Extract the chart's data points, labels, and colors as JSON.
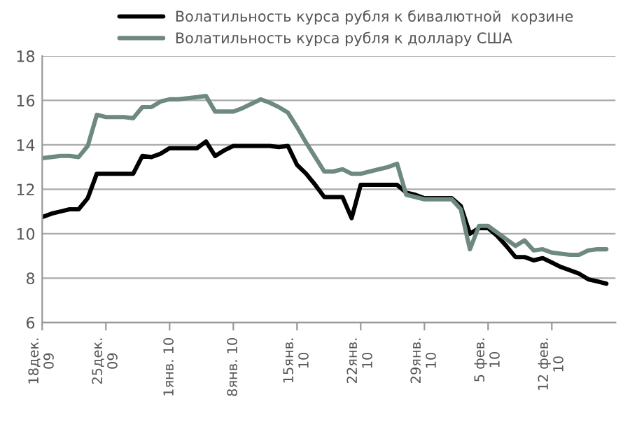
{
  "chart_data": {
    "type": "line",
    "categories": [
      "18дек.\n09",
      null,
      null,
      null,
      null,
      null,
      null,
      "25дек.\n09",
      null,
      null,
      null,
      null,
      null,
      null,
      "1янв. 10",
      null,
      null,
      null,
      null,
      null,
      null,
      "8янв. 10",
      null,
      null,
      null,
      null,
      null,
      null,
      "15янв.\n10",
      null,
      null,
      null,
      null,
      null,
      null,
      "22янв.\n10",
      null,
      null,
      null,
      null,
      null,
      null,
      "29янв.\n10",
      null,
      null,
      null,
      null,
      null,
      null,
      "5 фев.\n10",
      null,
      null,
      null,
      null,
      null,
      null,
      "12 фев.\n10",
      null,
      null,
      null,
      null,
      null,
      null
    ],
    "series": [
      {
        "name": "Волатильность курса рубля к бивалютной  корзине",
        "color": "#000000",
        "values": [
          10.75,
          10.9,
          11.0,
          11.1,
          11.1,
          11.6,
          12.7,
          12.7,
          12.7,
          12.7,
          12.7,
          13.5,
          13.45,
          13.6,
          13.85,
          13.85,
          13.85,
          13.85,
          14.15,
          13.5,
          13.75,
          13.95,
          13.95,
          13.95,
          13.95,
          13.95,
          13.9,
          13.95,
          13.1,
          12.7,
          12.2,
          11.65,
          11.65,
          11.65,
          10.7,
          12.2,
          12.2,
          12.2,
          12.2,
          12.2,
          11.85,
          11.75,
          11.6,
          11.6,
          11.6,
          11.6,
          11.25,
          10.0,
          10.25,
          10.25,
          9.9,
          9.45,
          8.95,
          8.95,
          8.8,
          8.9,
          8.7,
          8.5,
          8.35,
          8.2,
          7.95,
          7.85,
          7.75
        ]
      },
      {
        "name": "Волатильность курса рубля к доллару США",
        "color": "#6e8a80",
        "values": [
          13.4,
          13.45,
          13.5,
          13.5,
          13.45,
          13.95,
          15.35,
          15.25,
          15.25,
          15.25,
          15.2,
          15.7,
          15.7,
          15.95,
          16.05,
          16.05,
          16.1,
          16.15,
          16.2,
          15.5,
          15.5,
          15.5,
          15.65,
          15.85,
          16.05,
          15.9,
          15.7,
          15.45,
          14.8,
          14.1,
          13.45,
          12.8,
          12.8,
          12.9,
          12.7,
          12.7,
          12.8,
          12.9,
          13.0,
          13.15,
          11.75,
          11.65,
          11.55,
          11.55,
          11.55,
          11.55,
          11.1,
          9.3,
          10.35,
          10.35,
          10.05,
          9.75,
          9.45,
          9.7,
          9.25,
          9.3,
          9.15,
          9.1,
          9.05,
          9.05,
          9.25,
          9.3,
          9.3
        ]
      }
    ],
    "ylim": [
      6,
      18
    ],
    "yticks": [
      6,
      8,
      10,
      12,
      14,
      16,
      18
    ],
    "grid": "y",
    "legend": "top",
    "marker": "none",
    "line_style": "solid"
  }
}
